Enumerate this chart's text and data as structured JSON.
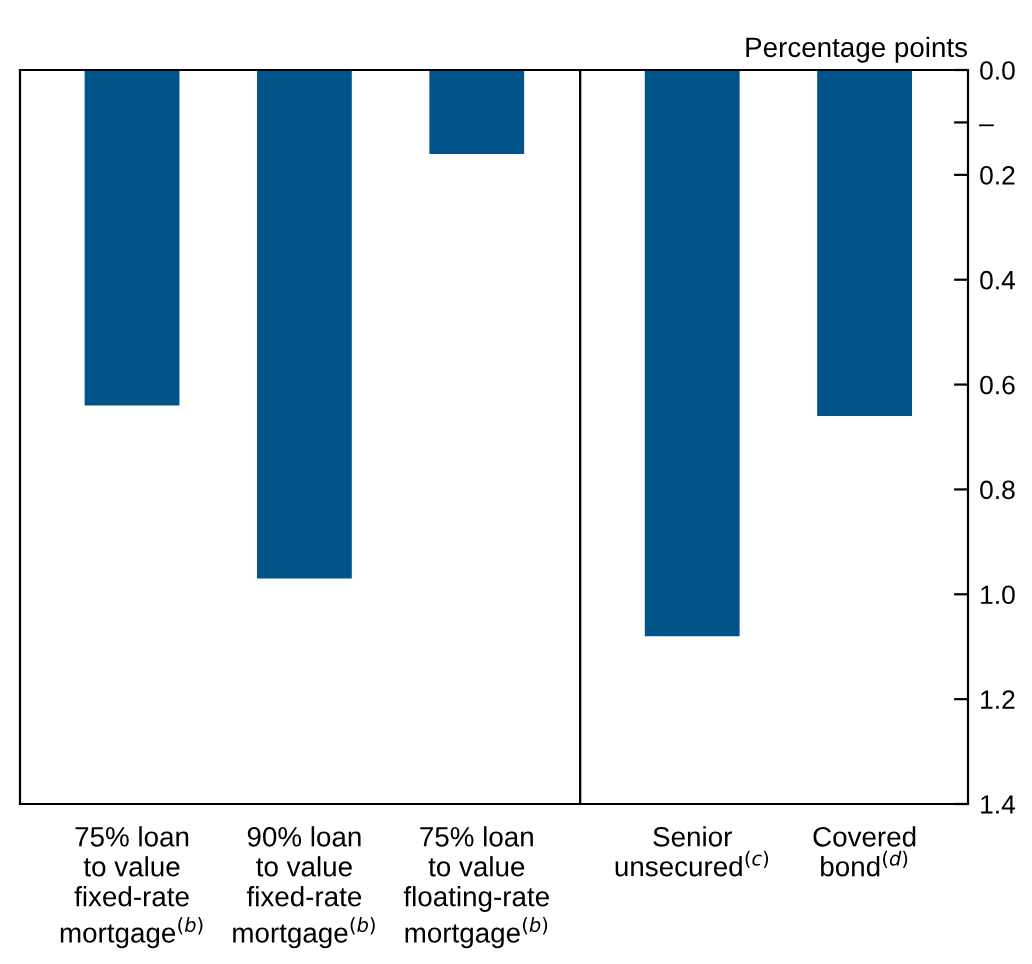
{
  "chart_data": [
    {
      "type": "bar",
      "categories": [
        "75% loan\nto value\nfixed-rate\nmortgage$^{(b)}$",
        "90% loan\nto value\nfixed-rate\nmortgage$^{(b)}$",
        "75% loan\nto value\nfloating-rate\nmortgage$^{(b)}$"
      ],
      "values": [
        -0.64,
        -0.97,
        -0.16
      ],
      "color": "#00548a",
      "ylim": [
        -1.4,
        0
      ],
      "tick_labels": "x"
    },
    {
      "type": "bar",
      "ylabel": "Percentage points",
      "categories": [
        "Senior\nunsecured$^{(c)}$",
        "Covered\nbond$^{(d)}$"
      ],
      "values": [
        -1.08,
        -0.66
      ],
      "color": "#00548a",
      "ylim": [
        -1.4,
        0
      ],
      "yticks": [
        {
          "value": 0,
          "label": "0.0"
        },
        {
          "value": -0.1,
          "label": "–"
        },
        {
          "value": -0.2,
          "label": "0.2"
        },
        {
          "value": -0.4,
          "label": "0.4"
        },
        {
          "value": -0.6,
          "label": "0.6"
        },
        {
          "value": -0.8,
          "label": "0.8"
        },
        {
          "value": -1.0,
          "label": "1.0"
        },
        {
          "value": -1.2,
          "label": "1.2"
        },
        {
          "value": -1.4,
          "label": "1.4"
        }
      ]
    }
  ]
}
